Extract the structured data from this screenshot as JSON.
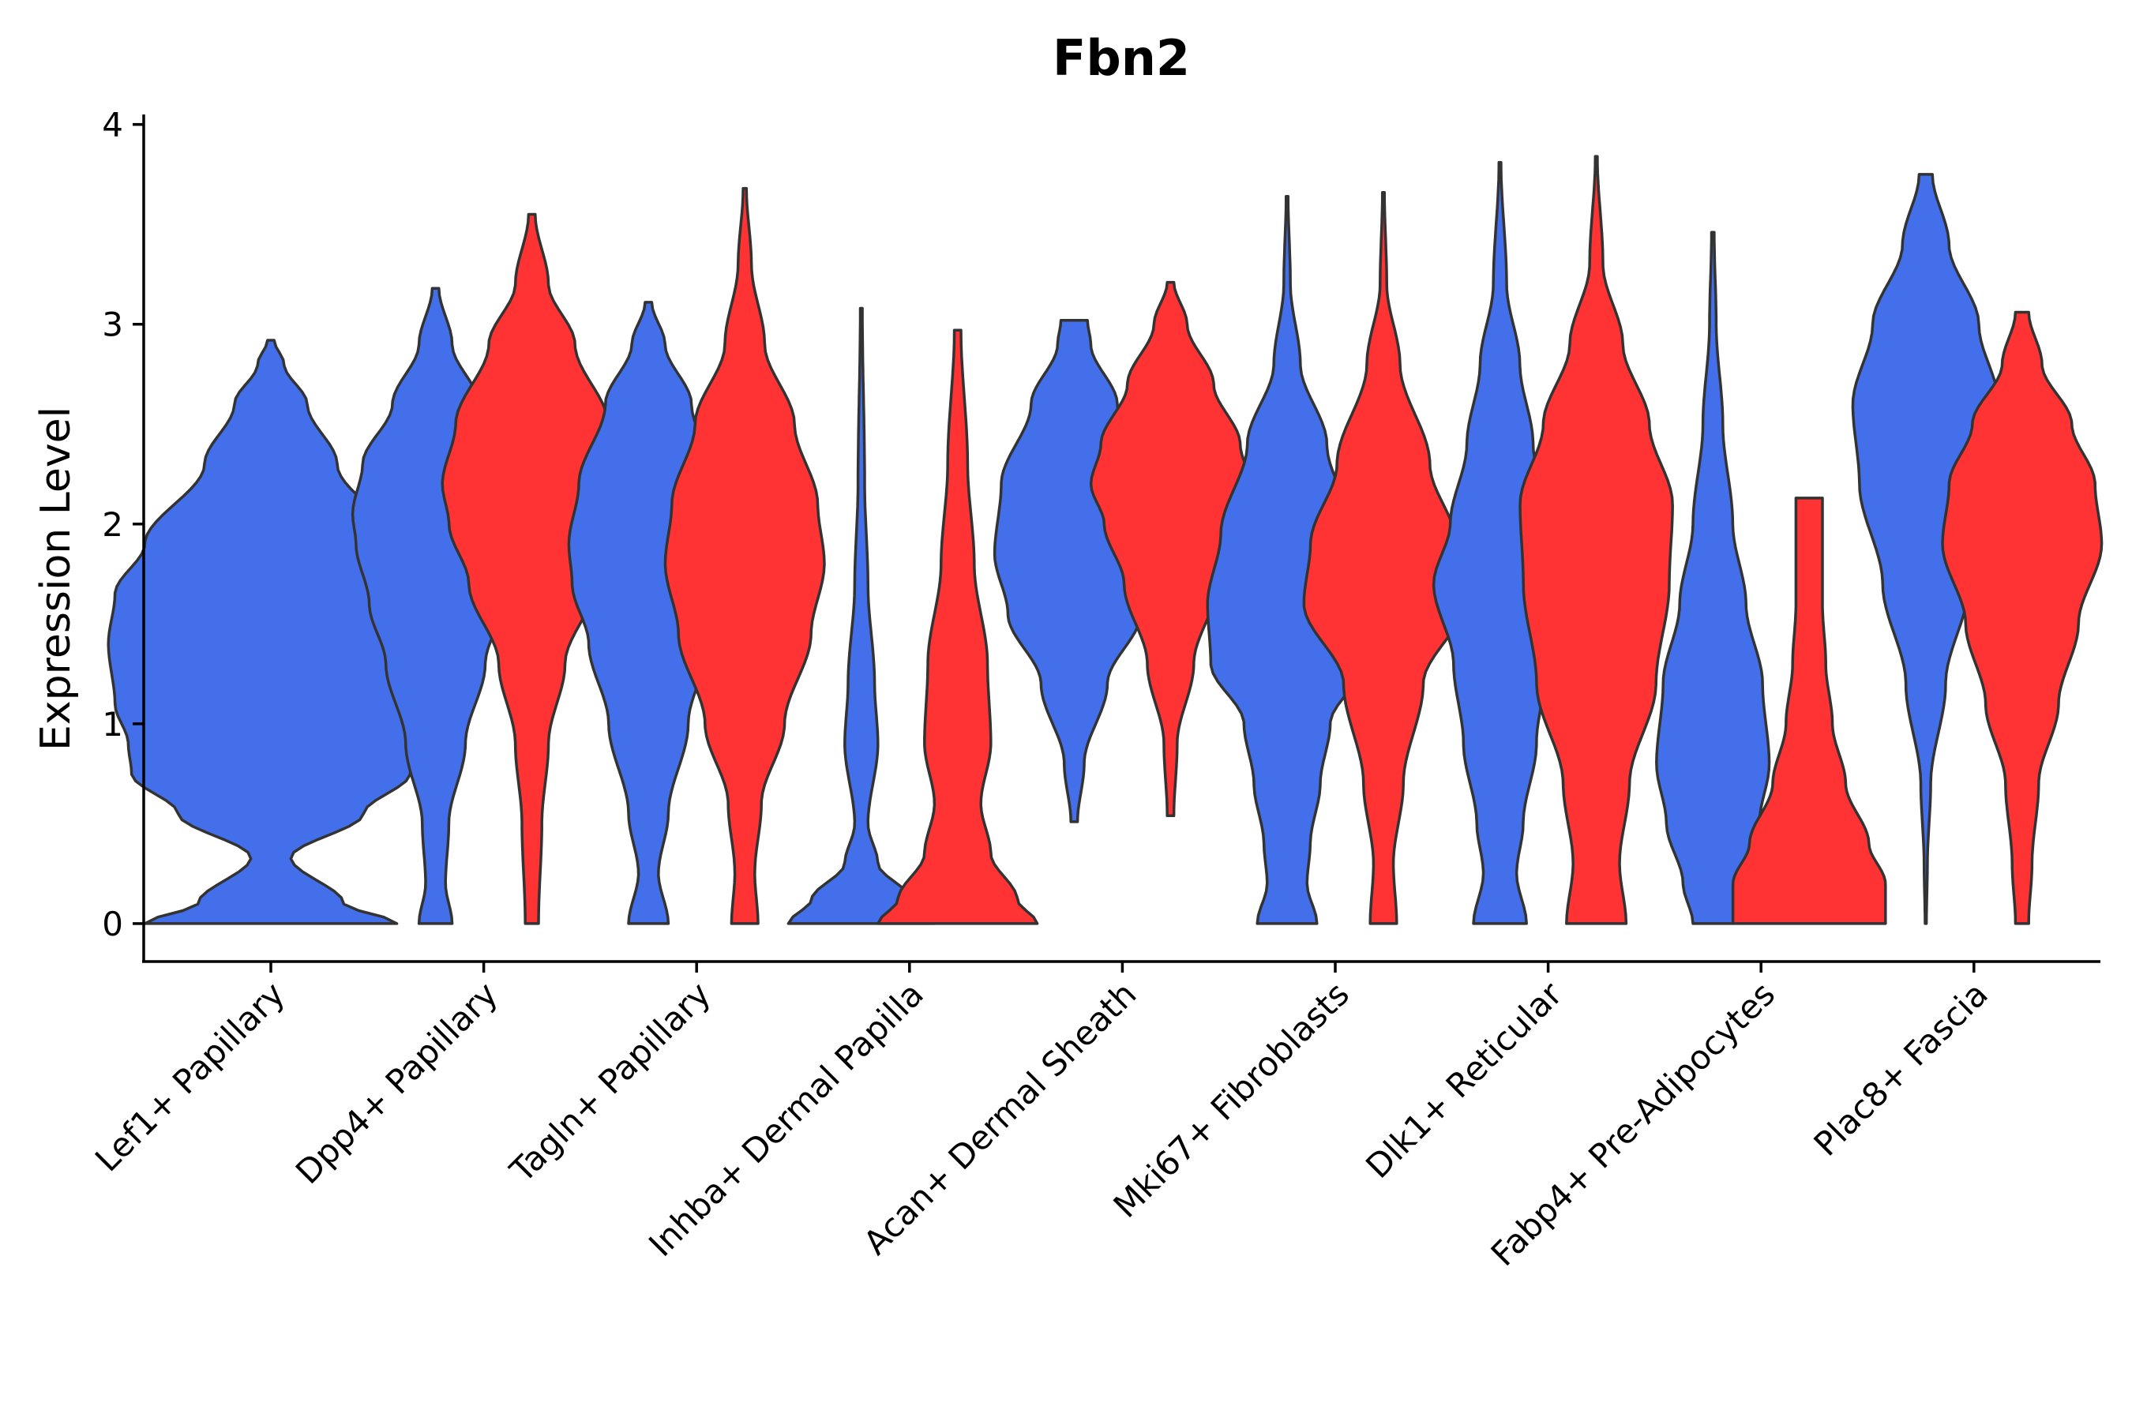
{
  "chart_data": {
    "type": "violin",
    "title": "Fbn2",
    "xlabel": "",
    "ylabel": "Expression Level",
    "ylim": [
      -0.19,
      4.05
    ],
    "yticks": [
      0,
      1,
      2,
      3,
      4
    ],
    "categories": [
      "Lef1+ Papillary",
      "Dpp4+ Papillary",
      "Tagln+ Papillary",
      "Inhba+ Dermal Papilla",
      "Acan+ Dermal Sheath",
      "Mki67+ Fibroblasts",
      "Dlk1+ Reticular",
      "Fabp4+ Pre-Adipocytes",
      "Plac8+ Fascia"
    ],
    "series_colors": [
      "#4370EA",
      "#FF3333"
    ],
    "violins": [
      {
        "category": 0,
        "color": "#4370EA",
        "ymin": 0,
        "ymax": 2.92,
        "profile": [
          [
            0,
            0.38
          ],
          [
            0.1,
            0.22
          ],
          [
            0.33,
            0.06
          ],
          [
            0.55,
            0.28
          ],
          [
            0.75,
            0.42
          ],
          [
            0.9,
            0.43
          ],
          [
            1.1,
            0.47
          ],
          [
            1.4,
            0.49
          ],
          [
            1.65,
            0.47
          ],
          [
            1.9,
            0.38
          ],
          [
            2.3,
            0.2
          ],
          [
            2.6,
            0.11
          ],
          [
            2.8,
            0.04
          ],
          [
            2.92,
            0.01
          ]
        ]
      },
      {
        "category": 1,
        "color": "#4370EA",
        "ymin": 0,
        "ymax": 3.18,
        "profile": [
          [
            0,
            0.05
          ],
          [
            0.2,
            0.03
          ],
          [
            0.5,
            0.04
          ],
          [
            0.9,
            0.09
          ],
          [
            1.3,
            0.15
          ],
          [
            1.6,
            0.2
          ],
          [
            1.9,
            0.24
          ],
          [
            2.05,
            0.25
          ],
          [
            2.3,
            0.22
          ],
          [
            2.6,
            0.13
          ],
          [
            2.9,
            0.05
          ],
          [
            3.18,
            0.01
          ]
        ]
      },
      {
        "category": 1,
        "color": "#FF3333",
        "ymin": 0,
        "ymax": 3.55,
        "profile": [
          [
            0,
            0.02
          ],
          [
            0.5,
            0.03
          ],
          [
            0.9,
            0.05
          ],
          [
            1.3,
            0.1
          ],
          [
            1.7,
            0.19
          ],
          [
            2.0,
            0.25
          ],
          [
            2.2,
            0.27
          ],
          [
            2.5,
            0.23
          ],
          [
            2.9,
            0.13
          ],
          [
            3.2,
            0.05
          ],
          [
            3.55,
            0.01
          ]
        ]
      },
      {
        "category": 2,
        "color": "#4370EA",
        "ymin": 0,
        "ymax": 3.11,
        "profile": [
          [
            0,
            0.06
          ],
          [
            0.25,
            0.03
          ],
          [
            0.55,
            0.06
          ],
          [
            1.0,
            0.12
          ],
          [
            1.4,
            0.18
          ],
          [
            1.7,
            0.23
          ],
          [
            1.9,
            0.24
          ],
          [
            2.2,
            0.21
          ],
          [
            2.6,
            0.13
          ],
          [
            2.9,
            0.05
          ],
          [
            3.11,
            0.01
          ]
        ]
      },
      {
        "category": 2,
        "color": "#FF3333",
        "ymin": 0,
        "ymax": 3.68,
        "profile": [
          [
            0,
            0.04
          ],
          [
            0.25,
            0.03
          ],
          [
            0.6,
            0.05
          ],
          [
            1.0,
            0.12
          ],
          [
            1.45,
            0.2
          ],
          [
            1.8,
            0.24
          ],
          [
            2.1,
            0.22
          ],
          [
            2.5,
            0.15
          ],
          [
            2.9,
            0.06
          ],
          [
            3.3,
            0.02
          ],
          [
            3.68,
            0.005
          ]
        ]
      },
      {
        "category": 3,
        "color": "#4370EA",
        "ymin": 0,
        "ymax": 3.08,
        "profile": [
          [
            0,
            0.22
          ],
          [
            0.12,
            0.15
          ],
          [
            0.3,
            0.05
          ],
          [
            0.5,
            0.02
          ],
          [
            0.9,
            0.05
          ],
          [
            1.2,
            0.04
          ],
          [
            1.7,
            0.02
          ],
          [
            2.2,
            0.01
          ],
          [
            3.08,
            0.003
          ]
        ]
      },
      {
        "category": 3,
        "color": "#FF3333",
        "ymin": 0,
        "ymax": 2.97,
        "profile": [
          [
            0,
            0.24
          ],
          [
            0.12,
            0.18
          ],
          [
            0.35,
            0.1
          ],
          [
            0.6,
            0.07
          ],
          [
            0.9,
            0.1
          ],
          [
            1.3,
            0.09
          ],
          [
            1.8,
            0.05
          ],
          [
            2.3,
            0.03
          ],
          [
            2.97,
            0.01
          ]
        ]
      },
      {
        "category": 4,
        "color": "#4370EA",
        "ymin": 0.51,
        "ymax": 3.02,
        "profile": [
          [
            0.51,
            0.01
          ],
          [
            0.8,
            0.03
          ],
          [
            1.2,
            0.1
          ],
          [
            1.55,
            0.2
          ],
          [
            1.85,
            0.24
          ],
          [
            2.2,
            0.22
          ],
          [
            2.6,
            0.13
          ],
          [
            2.9,
            0.05
          ],
          [
            3.02,
            0.04
          ]
        ]
      },
      {
        "category": 4,
        "color": "#FF3333",
        "ymin": 0.54,
        "ymax": 3.21,
        "profile": [
          [
            0.54,
            0.01
          ],
          [
            0.9,
            0.02
          ],
          [
            1.3,
            0.07
          ],
          [
            1.7,
            0.14
          ],
          [
            2.0,
            0.2
          ],
          [
            2.2,
            0.24
          ],
          [
            2.4,
            0.21
          ],
          [
            2.7,
            0.13
          ],
          [
            3.0,
            0.05
          ],
          [
            3.21,
            0.01
          ]
        ]
      },
      {
        "category": 5,
        "color": "#4370EA",
        "ymin": 0,
        "ymax": 3.64,
        "profile": [
          [
            0,
            0.09
          ],
          [
            0.2,
            0.06
          ],
          [
            0.4,
            0.07
          ],
          [
            0.7,
            0.1
          ],
          [
            1.0,
            0.13
          ],
          [
            1.3,
            0.23
          ],
          [
            1.6,
            0.24
          ],
          [
            1.95,
            0.2
          ],
          [
            2.4,
            0.12
          ],
          [
            2.8,
            0.04
          ],
          [
            3.2,
            0.01
          ],
          [
            3.64,
            0.003
          ]
        ]
      },
      {
        "category": 5,
        "color": "#FF3333",
        "ymin": 0,
        "ymax": 3.66,
        "profile": [
          [
            0,
            0.04
          ],
          [
            0.3,
            0.03
          ],
          [
            0.7,
            0.06
          ],
          [
            1.2,
            0.12
          ],
          [
            1.6,
            0.24
          ],
          [
            1.9,
            0.22
          ],
          [
            2.3,
            0.14
          ],
          [
            2.8,
            0.05
          ],
          [
            3.2,
            0.01
          ],
          [
            3.66,
            0.003
          ]
        ]
      },
      {
        "category": 6,
        "color": "#4370EA",
        "ymin": 0,
        "ymax": 3.81,
        "profile": [
          [
            0,
            0.08
          ],
          [
            0.25,
            0.05
          ],
          [
            0.5,
            0.07
          ],
          [
            0.9,
            0.11
          ],
          [
            1.3,
            0.14
          ],
          [
            1.7,
            0.2
          ],
          [
            2.0,
            0.15
          ],
          [
            2.4,
            0.1
          ],
          [
            2.8,
            0.06
          ],
          [
            3.2,
            0.02
          ],
          [
            3.81,
            0.003
          ]
        ]
      },
      {
        "category": 6,
        "color": "#FF3333",
        "ymin": 0,
        "ymax": 3.84,
        "profile": [
          [
            0,
            0.09
          ],
          [
            0.3,
            0.07
          ],
          [
            0.7,
            0.1
          ],
          [
            1.2,
            0.18
          ],
          [
            1.7,
            0.22
          ],
          [
            2.1,
            0.23
          ],
          [
            2.5,
            0.16
          ],
          [
            2.9,
            0.08
          ],
          [
            3.3,
            0.02
          ],
          [
            3.84,
            0.003
          ]
        ]
      },
      {
        "category": 7,
        "color": "#4370EA",
        "ymin": 0,
        "ymax": 3.46,
        "profile": [
          [
            0,
            0.06
          ],
          [
            0.2,
            0.09
          ],
          [
            0.5,
            0.14
          ],
          [
            0.8,
            0.17
          ],
          [
            1.2,
            0.15
          ],
          [
            1.6,
            0.1
          ],
          [
            2.0,
            0.06
          ],
          [
            2.5,
            0.03
          ],
          [
            3.0,
            0.01
          ],
          [
            3.46,
            0.004
          ]
        ]
      },
      {
        "category": 7,
        "color": "#FF3333",
        "ymin": 0,
        "ymax": 2.13,
        "profile": [
          [
            0,
            0.23
          ],
          [
            0.2,
            0.23
          ],
          [
            0.4,
            0.18
          ],
          [
            0.7,
            0.11
          ],
          [
            1.0,
            0.07
          ],
          [
            1.3,
            0.05
          ],
          [
            1.6,
            0.04
          ],
          [
            1.9,
            0.04
          ],
          [
            2.13,
            0.04
          ]
        ]
      },
      {
        "category": 8,
        "color": "#4370EA",
        "ymin": 0,
        "ymax": 3.75,
        "profile": [
          [
            0,
            0.002
          ],
          [
            0.3,
            0.005
          ],
          [
            0.7,
            0.015
          ],
          [
            1.2,
            0.06
          ],
          [
            1.7,
            0.13
          ],
          [
            2.2,
            0.2
          ],
          [
            2.6,
            0.22
          ],
          [
            3.0,
            0.16
          ],
          [
            3.4,
            0.07
          ],
          [
            3.75,
            0.02
          ]
        ]
      },
      {
        "category": 8,
        "color": "#FF3333",
        "ymin": 0,
        "ymax": 3.06,
        "profile": [
          [
            0,
            0.02
          ],
          [
            0.3,
            0.03
          ],
          [
            0.7,
            0.05
          ],
          [
            1.1,
            0.11
          ],
          [
            1.5,
            0.17
          ],
          [
            1.9,
            0.24
          ],
          [
            2.2,
            0.22
          ],
          [
            2.5,
            0.15
          ],
          [
            2.8,
            0.06
          ],
          [
            3.06,
            0.02
          ]
        ]
      }
    ]
  }
}
